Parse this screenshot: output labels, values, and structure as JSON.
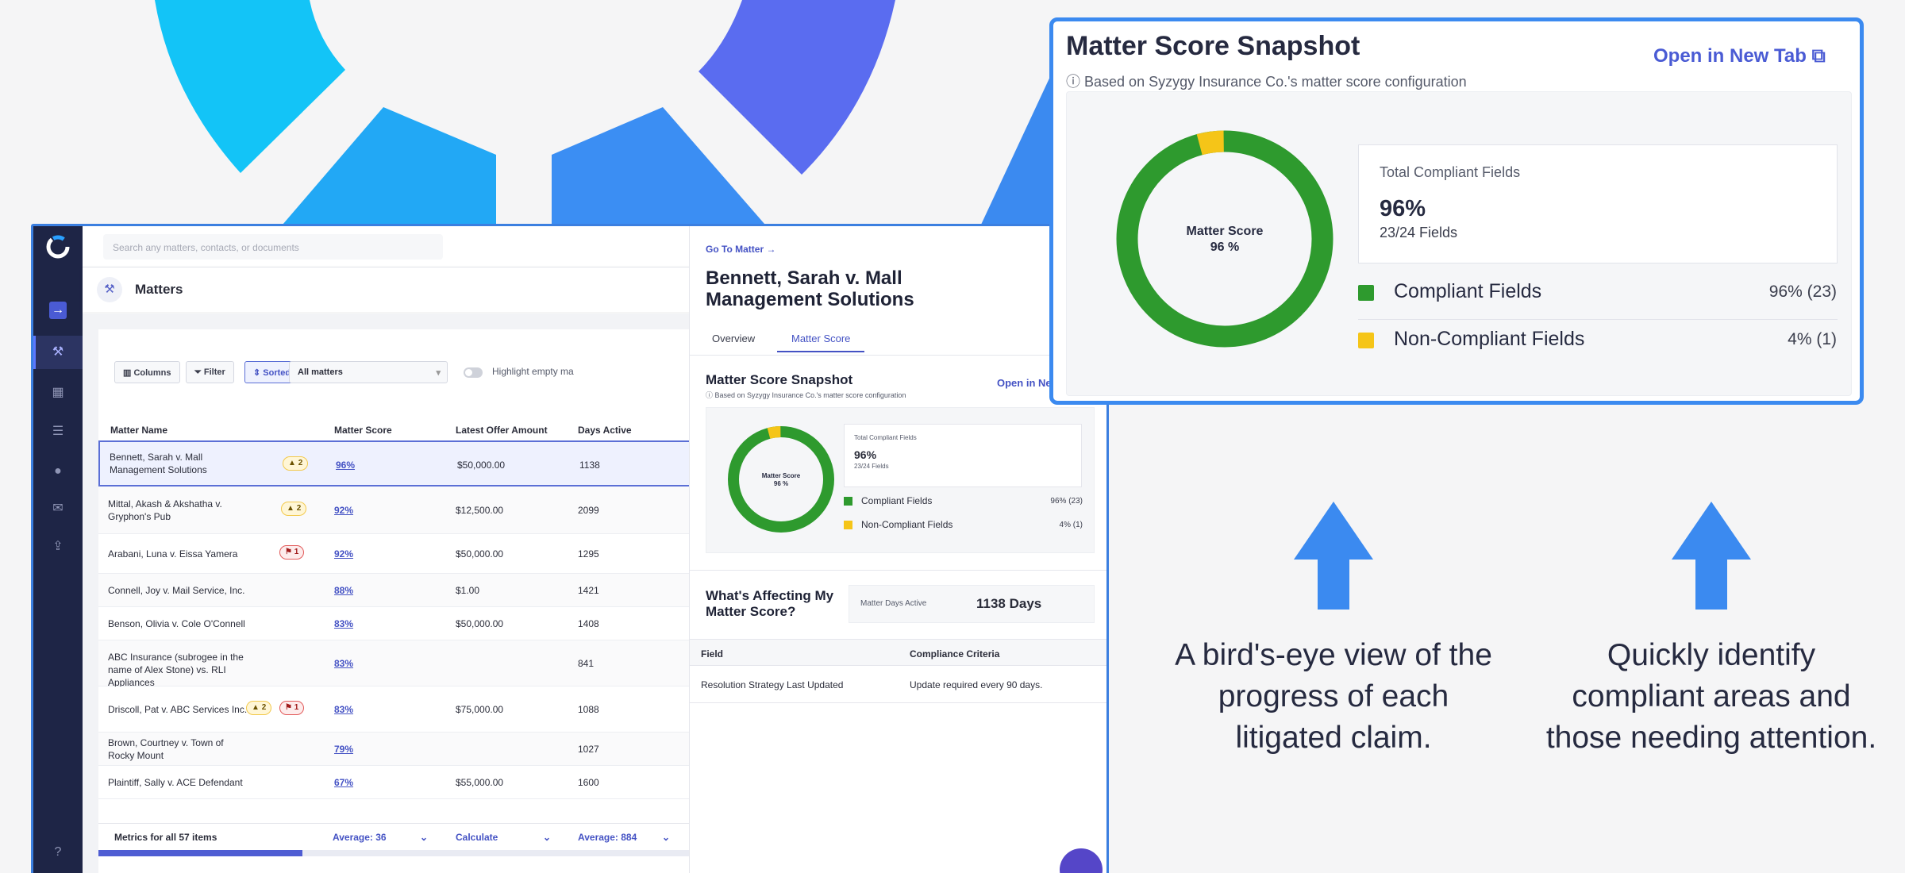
{
  "app": {
    "search_placeholder": "Search any matters, contacts, or documents",
    "page_title": "Matters",
    "toolbar": {
      "columns": "Columns",
      "filter": "Filter",
      "sort": "Sorted by Matter Score",
      "scope": "All matters",
      "highlight": "Highlight empty ma"
    },
    "table": {
      "headers": [
        "Matter Name",
        "Matter Score",
        "Latest Offer Amount",
        "Days Active"
      ],
      "rows": [
        {
          "name": "Bennett, Sarah v. Mall Management Solutions",
          "score": "96%",
          "offer": "$50,000.00",
          "days": "1138",
          "warn": "2",
          "flag": ""
        },
        {
          "name": "Mittal, Akash & Akshatha v. Gryphon's Pub",
          "score": "92%",
          "offer": "$12,500.00",
          "days": "2099",
          "warn": "2",
          "flag": ""
        },
        {
          "name": "Arabani, Luna v. Eissa Yamera",
          "score": "92%",
          "offer": "$50,000.00",
          "days": "1295",
          "warn": "",
          "flag": "1"
        },
        {
          "name": "Connell, Joy v. Mail Service, Inc.",
          "score": "88%",
          "offer": "$1.00",
          "days": "1421",
          "warn": "",
          "flag": ""
        },
        {
          "name": "Benson, Olivia v. Cole O'Connell",
          "score": "83%",
          "offer": "$50,000.00",
          "days": "1408",
          "warn": "",
          "flag": ""
        },
        {
          "name": "ABC Insurance (subrogee in the name of Alex Stone) vs. RLI Appliances",
          "score": "83%",
          "offer": "",
          "days": "841",
          "warn": "",
          "flag": ""
        },
        {
          "name": "Driscoll, Pat v. ABC Services Inc.",
          "score": "83%",
          "offer": "$75,000.00",
          "days": "1088",
          "warn": "2",
          "flag": "1"
        },
        {
          "name": "Brown, Courtney v. Town of Rocky Mount",
          "score": "79%",
          "offer": "",
          "days": "1027",
          "warn": "",
          "flag": ""
        },
        {
          "name": "Plaintiff, Sally v. ACE Defendant",
          "score": "67%",
          "offer": "$55,000.00",
          "days": "1600",
          "warn": "",
          "flag": ""
        }
      ]
    },
    "footer": {
      "metrics": "Metrics for all 57 items",
      "avg_score": "Average: 36",
      "calculate": "Calculate",
      "avg_days": "Average: 884",
      "scroll_fraction": 0.33
    }
  },
  "drawer": {
    "go_to": "Go To Matter",
    "title": "Bennett, Sarah v. Mall Management Solutions",
    "tabs": [
      "Overview",
      "Matter Score"
    ],
    "snapshot_title": "Matter Score Snapshot",
    "snapshot_sub": "Based on Syzygy Insurance Co.'s  matter score configuration",
    "open_link": "Open in Ne",
    "total_label": "Total Compliant Fields",
    "total_pct": "96%",
    "total_fields": "23/24 Fields",
    "legend": [
      {
        "label": "Compliant Fields",
        "value": "96% (23)"
      },
      {
        "label": "Non-Compliant Fields",
        "value": "4% (1)"
      }
    ],
    "affecting": "What's Affecting My Matter Score?",
    "days_label": "Matter Days Active",
    "days_value": "1138 Days",
    "crit_headers": [
      "Field",
      "Compliance Criteria"
    ],
    "crit_row": {
      "field": "Resolution Strategy Last Updated",
      "criteria": "Update required every 90 days."
    }
  },
  "snapshot": {
    "title": "Matter Score Snapshot",
    "subtitle": "Based on Syzygy Insurance Co.'s  matter score configuration",
    "open_link": "Open in New Tab",
    "donut_label": "Matter Score",
    "donut_value": "96 %",
    "total_label": "Total Compliant Fields",
    "total_pct": "96%",
    "total_fields": "23/24 Fields",
    "compliant_fraction": 0.96,
    "legend": [
      {
        "label": "Compliant Fields",
        "value": "96% (23)",
        "color": "#2e9a2e"
      },
      {
        "label": "Non-Compliant Fields",
        "value": "4% (1)",
        "color": "#f5c518"
      }
    ]
  },
  "captions": {
    "left": "A bird's-eye view of the progress of each litigated claim.",
    "right": "Quickly identify compliant areas and those needing attention."
  },
  "colors": {
    "accent": "#4452c4",
    "compliant": "#2e9a2e",
    "non_compliant": "#f5c518",
    "callout": "#3b8af0"
  }
}
